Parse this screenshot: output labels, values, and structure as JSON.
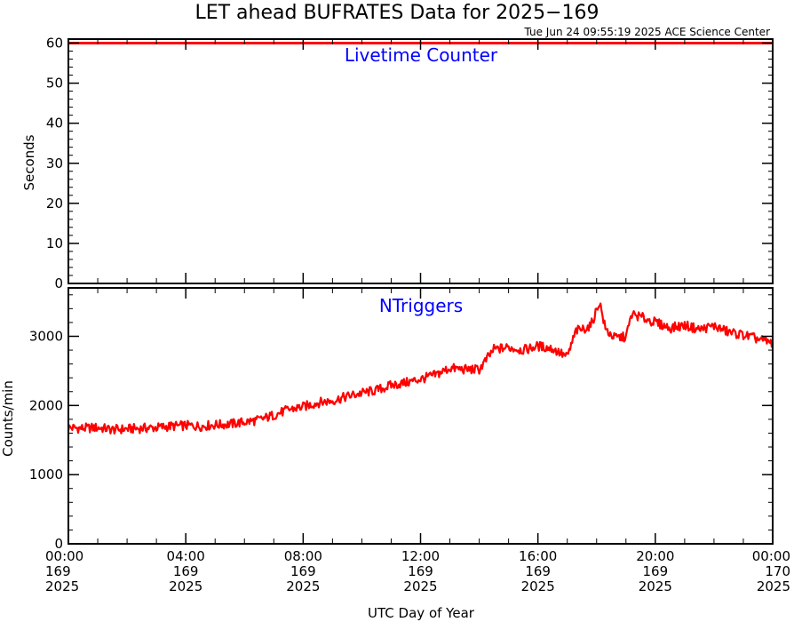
{
  "title": "LET ahead BUFRATES Data for 2025−169",
  "timestamp": "Tue Jun 24 09:55:19 2025 ACE Science Center",
  "xlabel": "UTC Day of Year",
  "x_ticks": [
    {
      "hour": 0,
      "time": "00:00",
      "doy": "169",
      "year": "2025"
    },
    {
      "hour": 4,
      "time": "04:00",
      "doy": "169",
      "year": "2025"
    },
    {
      "hour": 8,
      "time": "08:00",
      "doy": "169",
      "year": "2025"
    },
    {
      "hour": 12,
      "time": "12:00",
      "doy": "169",
      "year": "2025"
    },
    {
      "hour": 16,
      "time": "16:00",
      "doy": "169",
      "year": "2025"
    },
    {
      "hour": 20,
      "time": "20:00",
      "doy": "169",
      "year": "2025"
    },
    {
      "hour": 24,
      "time": "00:00",
      "doy": "170",
      "year": "2025"
    }
  ],
  "colors": {
    "series": "#ff0000",
    "panel_label": "#0000ff",
    "axes": "#000000",
    "background": "#ffffff"
  },
  "chart_data": [
    {
      "type": "line",
      "panel_label": "Livetime Counter",
      "ylabel": "Seconds",
      "ylim": [
        0,
        61
      ],
      "xlim": [
        0,
        24
      ],
      "y_ticks": [
        0,
        10,
        20,
        30,
        40,
        50,
        60
      ],
      "grid": false,
      "series": [
        {
          "x": [
            0,
            24
          ],
          "values": [
            60,
            60
          ]
        }
      ]
    },
    {
      "type": "line",
      "panel_label": "NTriggers",
      "ylabel": "Counts/min",
      "ylim": [
        0,
        3700
      ],
      "xlim": [
        0,
        24
      ],
      "y_ticks": [
        0,
        1000,
        2000,
        3000
      ],
      "grid": false,
      "series": [
        {
          "x": [
            0,
            0.5,
            1,
            1.5,
            2,
            2.5,
            3,
            3.5,
            4,
            4.5,
            5,
            5.5,
            6,
            6.5,
            7,
            7.5,
            8,
            8.5,
            9,
            9.5,
            10,
            10.5,
            11,
            11.5,
            12,
            12.5,
            13,
            13.5,
            14,
            14.5,
            15,
            15.5,
            16,
            16.5,
            17,
            17.3,
            17.5,
            17.8,
            18,
            18.1,
            18.3,
            18.6,
            19,
            19.2,
            19.5,
            20,
            20.5,
            21,
            21.5,
            22,
            22.5,
            23,
            23.5,
            24
          ],
          "values": [
            1680,
            1670,
            1680,
            1650,
            1660,
            1670,
            1680,
            1700,
            1710,
            1700,
            1720,
            1730,
            1760,
            1790,
            1860,
            1940,
            1980,
            2040,
            2070,
            2130,
            2180,
            2220,
            2290,
            2330,
            2380,
            2440,
            2540,
            2520,
            2520,
            2810,
            2840,
            2800,
            2860,
            2820,
            2700,
            3080,
            3100,
            3150,
            3380,
            3500,
            3100,
            2980,
            2990,
            3320,
            3280,
            3200,
            3120,
            3160,
            3100,
            3150,
            3060,
            3020,
            2960,
            2900
          ]
        }
      ]
    }
  ]
}
